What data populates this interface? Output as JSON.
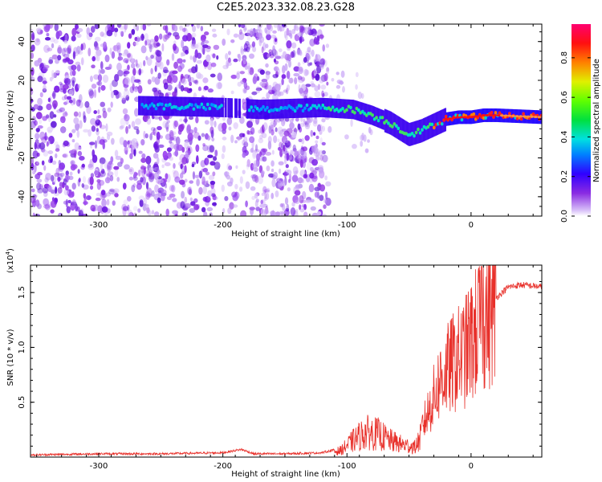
{
  "title": "C2E5.2023.332.08.23.G28",
  "colors": {
    "axis": "#000000",
    "snr_line": "#e8302a",
    "background": "#ffffff"
  },
  "chart_data": [
    {
      "type": "heatmap",
      "title": "C2E5.2023.332.08.23.G28",
      "xlabel": "Height of straight line (km)",
      "ylabel": "Frequency (Hz)",
      "xlim": [
        -355,
        57
      ],
      "ylim": [
        -50,
        49
      ],
      "x_ticks": [
        -300,
        -200,
        -100,
        0
      ],
      "y_ticks": [
        -40,
        -20,
        0,
        20,
        40
      ],
      "ridge": {
        "description_x": [
          -270,
          -200,
          -170,
          -120,
          -95,
          -80,
          -65,
          -55,
          -50,
          -40,
          -30,
          -20,
          -10,
          0,
          10,
          20,
          57
        ],
        "description_y": [
          7,
          6,
          5,
          6,
          5,
          2,
          -2,
          -6,
          -8,
          -6,
          -3,
          0,
          1,
          1,
          2,
          2,
          1
        ]
      },
      "colorbar": {
        "label": "Normalized spectral amplitude",
        "ticks": [
          "0.0",
          "0.2",
          "0.4",
          "0.6",
          "0.8"
        ],
        "range": [
          0,
          0.97
        ]
      }
    },
    {
      "type": "line",
      "xlabel": "Height of straight line (km)",
      "ylabel": "SNR (10 * v/v)",
      "y_multiplier": "(x10",
      "y_multiplier_exp": "4",
      "y_multiplier_close": ")",
      "xlim": [
        -355,
        57
      ],
      "ylim": [
        0,
        1.75
      ],
      "x_ticks": [
        -300,
        -200,
        -100,
        0
      ],
      "y_ticks": [
        0.5,
        1.0,
        1.5
      ],
      "y_tick_labels": [
        "0.5",
        "1.0",
        "1.5"
      ],
      "series": [
        {
          "name": "SNR",
          "x": [
            -355,
            -300,
            -250,
            -200,
            -185,
            -175,
            -150,
            -120,
            -105,
            -95,
            -85,
            -75,
            -65,
            -55,
            -45,
            -35,
            -25,
            -15,
            -5,
            0,
            5,
            10,
            15,
            20,
            25,
            30,
            40,
            50,
            57
          ],
          "y": [
            0.02,
            0.03,
            0.03,
            0.04,
            0.07,
            0.03,
            0.03,
            0.04,
            0.08,
            0.2,
            0.3,
            0.28,
            0.2,
            0.15,
            0.12,
            0.4,
            0.7,
            0.85,
            0.95,
            1.05,
            1.15,
            1.3,
            1.3,
            1.45,
            1.5,
            1.55,
            1.57,
            1.56,
            1.55
          ]
        }
      ]
    }
  ]
}
